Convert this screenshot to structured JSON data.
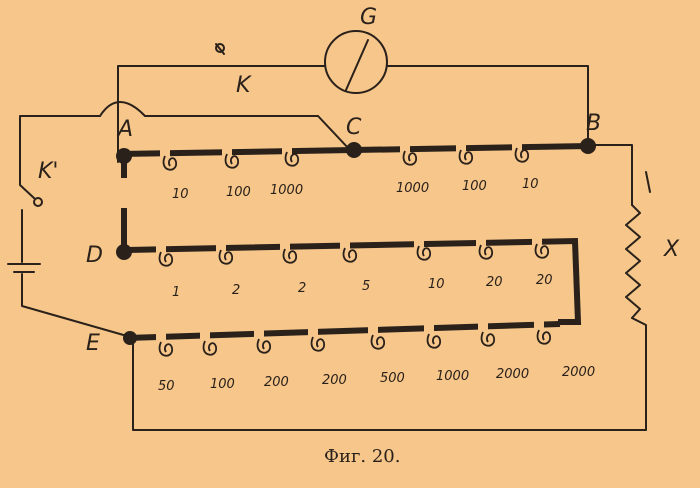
{
  "figure": {
    "caption": "Фиг. 20.",
    "labels": {
      "A": "A",
      "B": "B",
      "C": "C",
      "D": "D",
      "E": "E",
      "G": "G",
      "K": "K",
      "K1": "K'",
      "X": "X"
    },
    "row1_left": [
      "10",
      "100",
      "1000"
    ],
    "row1_right": [
      "1000",
      "100",
      "10"
    ],
    "row2": [
      "1",
      "2",
      "2",
      "5",
      "10",
      "20",
      "20"
    ],
    "row3": [
      "50",
      "100",
      "200",
      "200",
      "500",
      "1000",
      "2000",
      "2000"
    ]
  }
}
